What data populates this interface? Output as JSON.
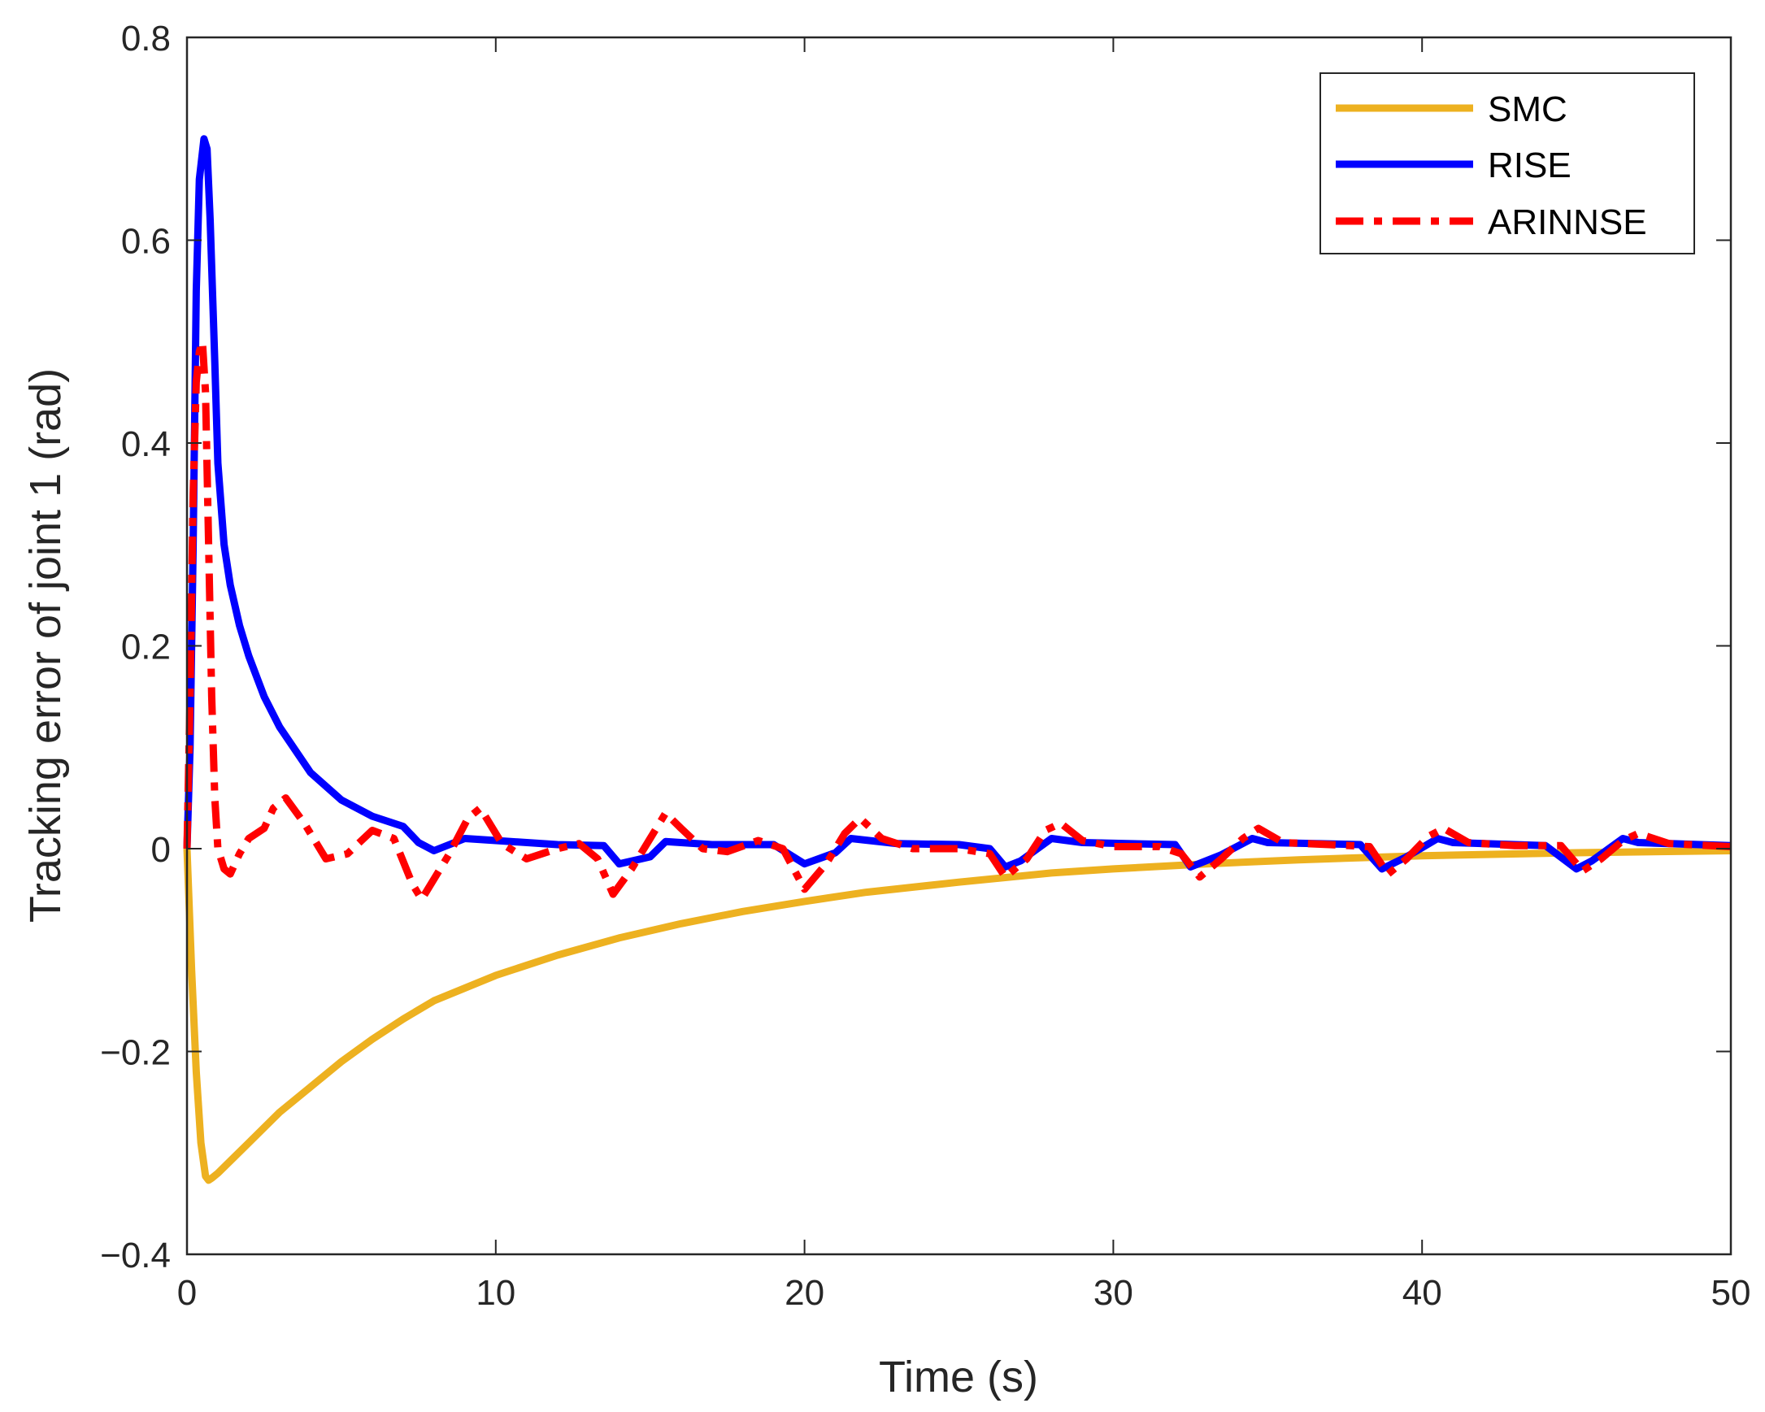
{
  "chart_data": {
    "type": "line",
    "title": "",
    "xlabel": "Time (s)",
    "ylabel": "Tracking error of joint 1 (rad)",
    "xlim": [
      0,
      50
    ],
    "ylim": [
      -0.4,
      0.8
    ],
    "xticks": [
      0,
      10,
      20,
      30,
      40,
      50
    ],
    "xtick_labels": [
      "0",
      "10",
      "20",
      "30",
      "40",
      "50"
    ],
    "yticks": [
      -0.4,
      -0.2,
      0,
      0.2,
      0.4,
      0.6,
      0.8
    ],
    "ytick_labels": [
      "-0.4",
      "-0.2",
      "0",
      "0.2",
      "0.4",
      "0.6",
      "0.8"
    ],
    "grid": false,
    "legend_position": "top-right",
    "series": [
      {
        "name": "SMC",
        "color": "#EDB120",
        "style": "solid",
        "x": [
          0,
          0.15,
          0.3,
          0.45,
          0.6,
          0.7,
          0.8,
          1.0,
          1.5,
          2,
          3,
          4,
          5,
          6,
          7,
          8,
          10,
          12,
          14,
          16,
          18,
          20,
          22,
          25,
          28,
          30,
          33,
          36,
          40,
          45,
          50
        ],
        "y": [
          0,
          -0.12,
          -0.22,
          -0.29,
          -0.323,
          -0.327,
          -0.325,
          -0.32,
          -0.305,
          -0.29,
          -0.26,
          -0.235,
          -0.21,
          -0.188,
          -0.168,
          -0.15,
          -0.125,
          -0.105,
          -0.088,
          -0.074,
          -0.062,
          -0.052,
          -0.043,
          -0.033,
          -0.024,
          -0.02,
          -0.015,
          -0.011,
          -0.007,
          -0.004,
          -0.002
        ]
      },
      {
        "name": "RISE",
        "color": "#0000FF",
        "style": "solid",
        "x": [
          0,
          0.1,
          0.2,
          0.3,
          0.4,
          0.55,
          0.65,
          0.75,
          0.9,
          1.0,
          1.2,
          1.4,
          1.7,
          2.0,
          2.5,
          3,
          4,
          5,
          6,
          7,
          7.5,
          8,
          9,
          10,
          12,
          13.5,
          14,
          15,
          15.5,
          17,
          19,
          20,
          21,
          21.5,
          23,
          25,
          26,
          26.5,
          27,
          28,
          29,
          32,
          32.5,
          33.5,
          34.5,
          35,
          38,
          38.7,
          39.5,
          40.5,
          41,
          44,
          45,
          45.5,
          46.5,
          47,
          50
        ],
        "y": [
          0,
          0.1,
          0.3,
          0.55,
          0.66,
          0.7,
          0.69,
          0.62,
          0.48,
          0.38,
          0.3,
          0.26,
          0.22,
          0.19,
          0.15,
          0.12,
          0.075,
          0.048,
          0.032,
          0.022,
          0.006,
          -0.002,
          0.01,
          0.008,
          0.004,
          0.003,
          -0.015,
          -0.008,
          0.007,
          0.004,
          0.004,
          -0.015,
          -0.004,
          0.01,
          0.005,
          0.004,
          0.0,
          -0.018,
          -0.012,
          0.01,
          0.006,
          0.004,
          -0.018,
          -0.006,
          0.01,
          0.006,
          0.004,
          -0.02,
          -0.008,
          0.01,
          0.006,
          0.003,
          -0.02,
          -0.012,
          0.01,
          0.006,
          0.003
        ]
      },
      {
        "name": "ARINNSE",
        "color": "#FF0000",
        "style": "dashdot",
        "x": [
          0,
          0.1,
          0.2,
          0.3,
          0.4,
          0.5,
          0.6,
          0.7,
          0.8,
          0.9,
          1.0,
          1.2,
          1.4,
          1.7,
          2.0,
          2.5,
          2.8,
          3.2,
          3.8,
          4.5,
          5.2,
          6.0,
          6.7,
          7.3,
          7.6,
          8.1,
          8.5,
          9.1,
          9.5,
          10.2,
          11,
          12,
          12.7,
          13.3,
          13.8,
          14.4,
          15,
          15.5,
          16,
          16.7,
          17.5,
          18.5,
          19.3,
          20,
          20.7,
          21.3,
          21.8,
          22.5,
          23.5,
          25,
          26,
          26.5,
          27.2,
          27.8,
          28.3,
          29,
          30,
          31.5,
          32.2,
          32.8,
          33.5,
          34.2,
          34.7,
          35.5,
          37,
          38.3,
          38.9,
          39.5,
          40.2,
          40.7,
          41.5,
          43,
          44.5,
          45.2,
          45.8,
          46.5,
          47,
          48,
          50
        ],
        "y": [
          0,
          0.15,
          0.35,
          0.46,
          0.49,
          0.5,
          0.45,
          0.3,
          0.15,
          0.05,
          0.0,
          -0.02,
          -0.025,
          -0.005,
          0.01,
          0.02,
          0.04,
          0.05,
          0.025,
          -0.01,
          -0.005,
          0.018,
          0.01,
          -0.035,
          -0.05,
          -0.025,
          -0.005,
          0.03,
          0.04,
          0.005,
          -0.01,
          0.0,
          0.005,
          -0.01,
          -0.045,
          -0.02,
          0.01,
          0.035,
          0.02,
          0.0,
          -0.003,
          0.008,
          0.0,
          -0.04,
          -0.015,
          0.015,
          0.03,
          0.01,
          0.0,
          0.0,
          -0.005,
          -0.028,
          -0.01,
          0.018,
          0.025,
          0.008,
          0.002,
          0.002,
          -0.005,
          -0.028,
          -0.01,
          0.01,
          0.02,
          0.006,
          0.004,
          0.002,
          -0.025,
          -0.01,
          0.012,
          0.02,
          0.006,
          0.003,
          0.003,
          -0.022,
          -0.01,
          0.008,
          0.015,
          0.005,
          0.002
        ]
      }
    ]
  }
}
